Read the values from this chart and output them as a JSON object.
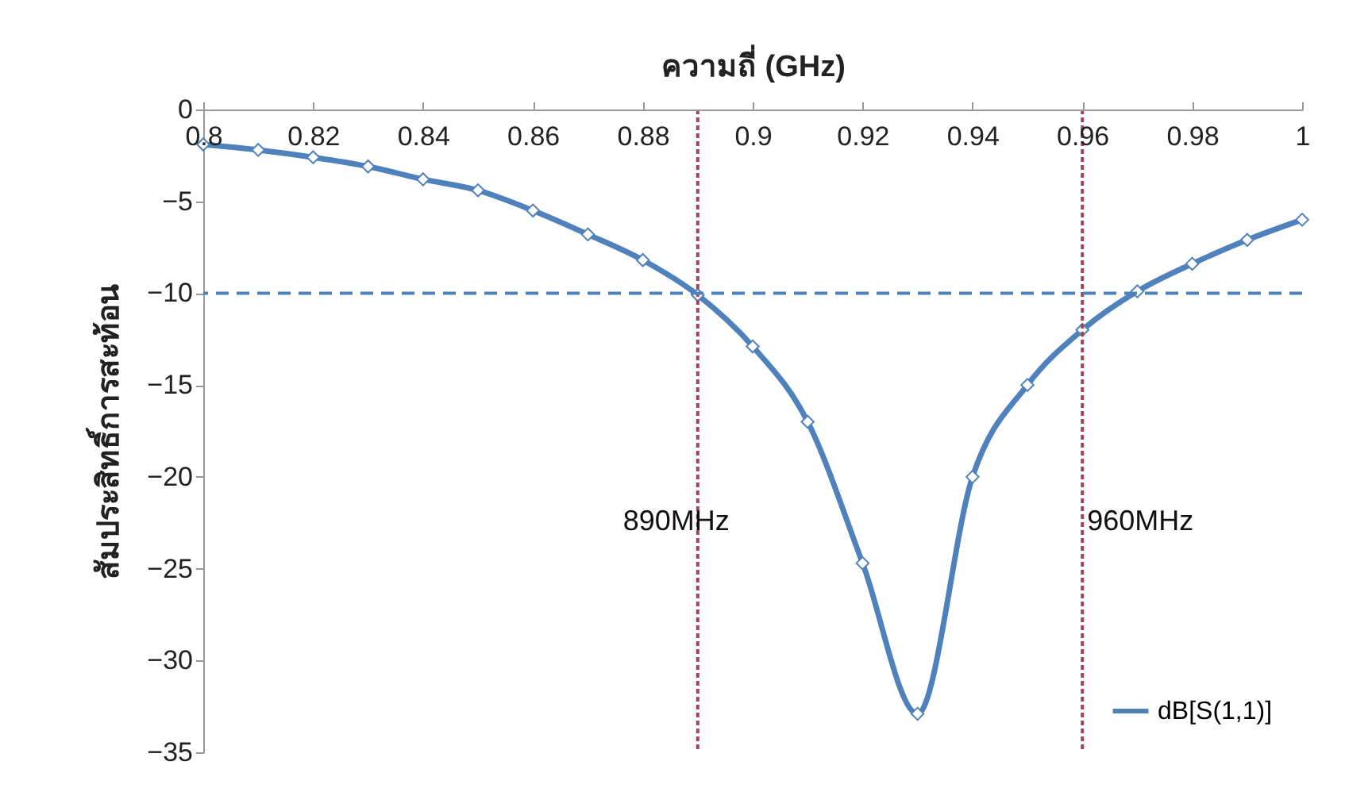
{
  "chart_data": {
    "type": "line",
    "xlabel": "ความถี่ (GHz)",
    "ylabel": "สัมประสิทธิ์การสะท้อน",
    "x": [
      0.8,
      0.81,
      0.82,
      0.83,
      0.84,
      0.85,
      0.86,
      0.87,
      0.88,
      0.89,
      0.9,
      0.91,
      0.92,
      0.93,
      0.94,
      0.95,
      0.96,
      0.97,
      0.98,
      0.99,
      1.0
    ],
    "series": [
      {
        "name": "dB[S(1,1)]",
        "color": "#4f81bd",
        "values": [
          -1.9,
          -2.2,
          -2.6,
          -3.1,
          -3.8,
          -4.4,
          -5.5,
          -6.8,
          -8.2,
          -10.1,
          -12.9,
          -17,
          -24.7,
          -32.9,
          -20,
          -15,
          -12,
          -9.9,
          -8.4,
          -7.1,
          -6.0
        ]
      }
    ],
    "xlim": [
      0.8,
      1
    ],
    "xticks": [
      0.8,
      0.82,
      0.84,
      0.86,
      0.88,
      0.9,
      0.92,
      0.94,
      0.96,
      0.98,
      1
    ],
    "ylim": [
      -35,
      0
    ],
    "yticks": [
      -35,
      -30,
      -25,
      -20,
      -15,
      -10,
      -5,
      0
    ],
    "ref_lines": [
      {
        "axis": "x",
        "value": 0.89,
        "label": "890MHz",
        "color": "#a0485a",
        "line_style": "dotted"
      },
      {
        "axis": "x",
        "value": 0.96,
        "label": "960MHz",
        "color": "#a0485a",
        "line_style": "dotted"
      },
      {
        "axis": "y",
        "value": -10,
        "color": "#4f81bd",
        "line_style": "dashed"
      }
    ],
    "marker": "diamond",
    "line_style": "solid",
    "grid": false,
    "legend": "bottom right"
  }
}
